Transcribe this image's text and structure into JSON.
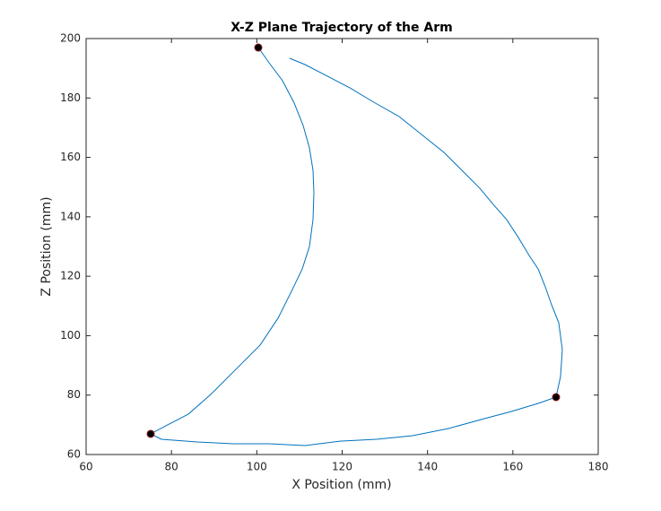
{
  "chart_data": {
    "type": "line",
    "title": "X-Z Plane Trajectory of the Arm",
    "xlabel": "X Position (mm)",
    "ylabel": "Z Position (mm)",
    "xlim": [
      60,
      180
    ],
    "ylim": [
      60,
      200
    ],
    "xticks": [
      60,
      80,
      100,
      120,
      140,
      160,
      180
    ],
    "yticks": [
      60,
      80,
      100,
      120,
      140,
      160,
      180,
      200
    ],
    "color": "#0072bd",
    "x": [
      100.35,
      102.87,
      106.02,
      108.76,
      110.86,
      112.33,
      113.17,
      113.38,
      113.17,
      112.33,
      110.65,
      108.13,
      104.97,
      100.77,
      95.52,
      89.21,
      83.96,
      78.7,
      75.13,
      77.65,
      86.06,
      94.47,
      102.87,
      111.28,
      119.69,
      128.09,
      136.5,
      144.9,
      153.31,
      159.62,
      165.92,
      170.12,
      171.17,
      171.59,
      170.75,
      169.07,
      167.6,
      165.92,
      163.82,
      161.3,
      158.56,
      155.41,
      152.26,
      148.06,
      143.85,
      138.6,
      133.35,
      127.04,
      121.79,
      116.53,
      111.28,
      107.71
    ],
    "y": [
      196.98,
      191.85,
      185.82,
      178.28,
      170.74,
      163.19,
      155.65,
      148.11,
      139.06,
      130.01,
      122.47,
      114.93,
      105.88,
      96.83,
      89.29,
      80.23,
      73.6,
      69.66,
      66.95,
      65.14,
      64.22,
      63.62,
      63.62,
      63.02,
      64.52,
      65.14,
      66.33,
      68.75,
      72.07,
      74.48,
      77.2,
      79.31,
      86.25,
      95.29,
      104.35,
      110.39,
      116.42,
      122.45,
      126.97,
      133.0,
      139.04,
      144.17,
      149.6,
      155.65,
      161.68,
      167.71,
      173.75,
      178.88,
      183.41,
      187.33,
      191.25,
      193.36
    ],
    "markers": {
      "color": "#000000",
      "edge": "#8b1a1a",
      "x": [
        100.35,
        75.13,
        170.12
      ],
      "y": [
        196.98,
        66.95,
        79.31
      ]
    }
  }
}
